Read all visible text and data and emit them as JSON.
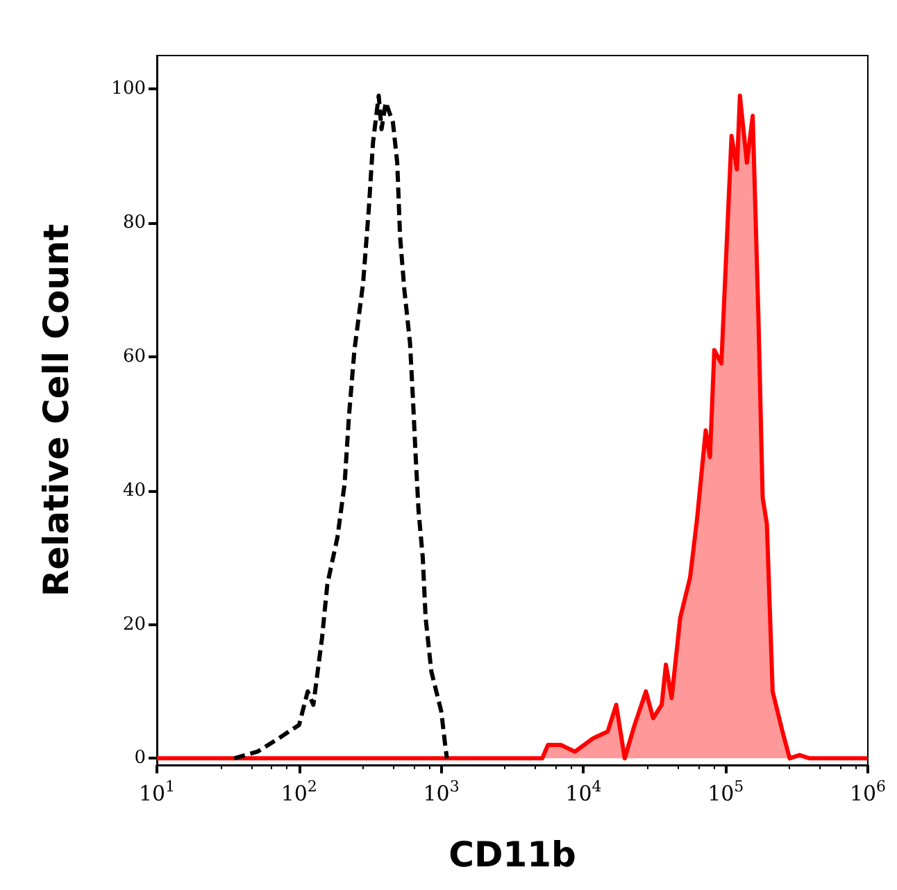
{
  "chart_data": {
    "type": "line",
    "xlabel": "CD11b",
    "ylabel": "Relative Cell Count",
    "log": "x",
    "xlim": [
      10,
      1000000
    ],
    "xticks": [
      {
        "value": 10,
        "label": "10$^{1}$"
      },
      {
        "value": 100,
        "label": "10$^{2}$"
      },
      {
        "value": 1000,
        "label": "10$^{3}$"
      },
      {
        "value": 10000,
        "label": "10$^{4}$"
      },
      {
        "value": 100000,
        "label": "10$^{5}$"
      },
      {
        "value": 1000000,
        "label": "10$^{6}$"
      }
    ],
    "ylim": [
      -1,
      105
    ],
    "yticks": [
      0,
      20,
      40,
      60,
      80,
      100
    ],
    "marker": "none",
    "series": [
      {
        "color": "#000000",
        "line_style": "dashed",
        "x": [
          35,
          51,
          72,
          100,
          115,
          126,
          145,
          158,
          186,
          209,
          224,
          245,
          282,
          309,
          331,
          363,
          380,
          407,
          457,
          490,
          513,
          550,
          603,
          631,
          661,
          692,
          741,
          776,
          851,
          1000,
          1072,
          1096
        ],
        "values": [
          0,
          1,
          3,
          5,
          10,
          8,
          18,
          26,
          33,
          41,
          51,
          61,
          71,
          82,
          92,
          99,
          94,
          98,
          95,
          89,
          78,
          70,
          62,
          54,
          45,
          37,
          30,
          21,
          13,
          7,
          1.5,
          0
        ]
      },
      {
        "type": "area",
        "color": "#ff0000",
        "line_style": "solid",
        "x": [
          10,
          3800,
          5130,
          5620,
          6920,
          8710,
          11700,
          14800,
          17000,
          19500,
          22900,
          27500,
          30900,
          35500,
          38000,
          41700,
          47900,
          56200,
          63100,
          72400,
          77600,
          83200,
          93300,
          110000,
          120000,
          126000,
          141000,
          155000,
          170000,
          182000,
          195000,
          214000,
          251000,
          282000,
          331000,
          389000,
          1000000
        ],
        "values": [
          0,
          0,
          0,
          2,
          2,
          1,
          3,
          4,
          8,
          0,
          5,
          10,
          6,
          8,
          14,
          9,
          21,
          27,
          36,
          49,
          45,
          61,
          59,
          93,
          88,
          99,
          89,
          96,
          66,
          39,
          35,
          10,
          4,
          0,
          0.5,
          0,
          0
        ]
      }
    ]
  }
}
